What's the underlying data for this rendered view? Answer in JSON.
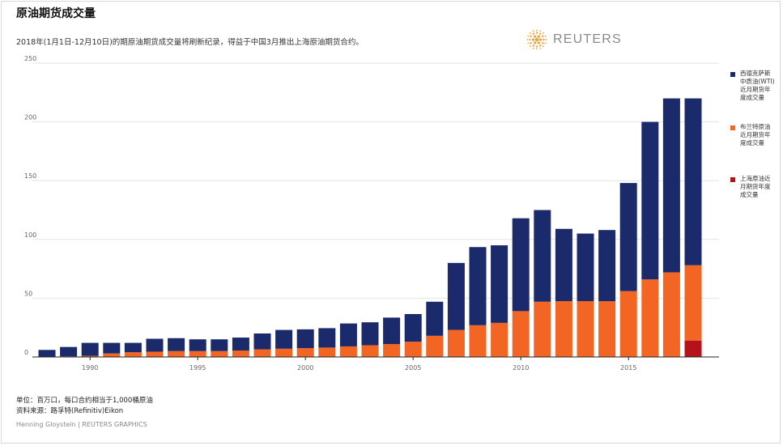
{
  "header": {
    "title": "原油期货成交量",
    "subtitle": "2018年(1月1日-12月10日)的期原油期货成交量将刷新纪录，得益于中国3月推出上海原油期货合约。",
    "logo_text": "REUTERS"
  },
  "footer": {
    "units": "单位：百万口，每口合约相当于1,000桶原油",
    "source": "资料来源：路孚特(Refinitiv)Eikon",
    "credit": "Henning Gloystein  | REUTERS GRAPHICS"
  },
  "colors": {
    "wti": "#1b2a6b",
    "brent": "#f26522",
    "shanghai": "#b5121b",
    "logo": "#e6a23c"
  },
  "chart_data": {
    "type": "bar",
    "stacked": true,
    "title": "原油期货成交量",
    "xlabel": "",
    "ylabel": "",
    "ylim": [
      0,
      250
    ],
    "yticks": [
      0,
      50,
      100,
      150,
      200,
      250
    ],
    "xticks": [
      1990,
      1995,
      2000,
      2005,
      2010,
      2015
    ],
    "grid": true,
    "legend_position": "right",
    "categories": [
      1988,
      1989,
      1990,
      1991,
      1992,
      1993,
      1994,
      1995,
      1996,
      1997,
      1998,
      1999,
      2000,
      2001,
      2002,
      2003,
      2004,
      2005,
      2006,
      2007,
      2008,
      2009,
      2010,
      2011,
      2012,
      2013,
      2014,
      2015,
      2016,
      2017,
      2018
    ],
    "series": [
      {
        "name": "上海原油近月期货年度成交量",
        "key": "shanghai",
        "values": [
          0,
          0,
          0,
          0,
          0,
          0,
          0,
          0,
          0,
          0,
          0,
          0,
          0,
          0,
          0,
          0,
          0,
          0,
          0,
          0,
          0,
          0,
          0,
          0,
          0,
          0,
          0,
          0,
          0,
          0,
          14
        ]
      },
      {
        "name": "布兰特原油近月期货年度成交量",
        "key": "brent",
        "values": [
          0,
          0.5,
          1,
          3,
          4,
          4.5,
          5,
          5,
          5,
          5.5,
          6.5,
          7,
          7.5,
          8,
          9,
          10,
          11,
          13,
          18,
          23,
          27,
          29,
          39,
          47,
          47.5,
          47.5,
          47.5,
          56,
          66,
          72,
          64
        ]
      },
      {
        "name": "西德克萨斯中质油(WTI)近月期货年度成交量",
        "key": "wti",
        "values": [
          6,
          8,
          11,
          9,
          8,
          11,
          11,
          10,
          10,
          11,
          13.5,
          16,
          16,
          16.5,
          19.5,
          19.5,
          22.5,
          23.5,
          29,
          57,
          66.5,
          66,
          79,
          78,
          61.5,
          57.5,
          60.5,
          92,
          134,
          148,
          142
        ]
      }
    ]
  }
}
